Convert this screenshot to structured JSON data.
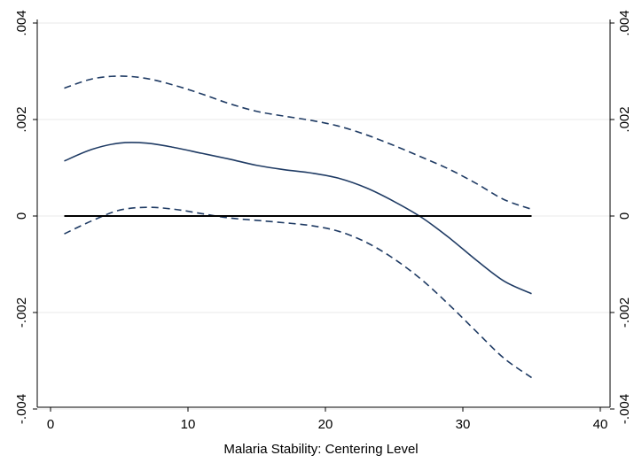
{
  "chart_data": {
    "type": "line",
    "title": "",
    "xlabel": "Malaria Stability: Centering Level",
    "ylabel": "",
    "xlim": [
      0,
      40
    ],
    "ylim": [
      -0.004,
      0.004
    ],
    "x_ticks": [
      0,
      10,
      20,
      30,
      40
    ],
    "x_tick_labels": [
      "0",
      "10",
      "20",
      "30",
      "40"
    ],
    "y_ticks": [
      -0.004,
      -0.002,
      0,
      0.002,
      0.004
    ],
    "y_tick_labels": [
      "-.004",
      "-.002",
      "0",
      ".002",
      ".004"
    ],
    "right_axis_mirror": true,
    "grid": "horizontal",
    "legend": "none",
    "series": [
      {
        "role": "estimate",
        "style": "solid",
        "color": "#1f3b64",
        "x": [
          1,
          3,
          5,
          7,
          9,
          11,
          13,
          15,
          17,
          19,
          21,
          23,
          25,
          27,
          29,
          31,
          33,
          35
        ],
        "y": [
          0.00114,
          0.00138,
          0.00151,
          0.00151,
          0.00142,
          0.0013,
          0.00118,
          0.00105,
          0.00096,
          0.00089,
          0.00078,
          0.00058,
          0.0003,
          -3e-05,
          -0.00045,
          -0.00092,
          -0.00135,
          -0.00161
        ]
      },
      {
        "role": "upper-bound",
        "style": "dashed",
        "color": "#1f3b64",
        "x": [
          1,
          3,
          5,
          7,
          9,
          11,
          13,
          15,
          17,
          19,
          21,
          23,
          25,
          27,
          29,
          31,
          33,
          35
        ],
        "y": [
          0.00265,
          0.00284,
          0.0029,
          0.00285,
          0.00271,
          0.00253,
          0.00233,
          0.00217,
          0.00207,
          0.00198,
          0.00186,
          0.00168,
          0.00146,
          0.00122,
          0.00097,
          0.00067,
          0.00034,
          0.00014
        ]
      },
      {
        "role": "lower-bound",
        "style": "dashed",
        "color": "#1f3b64",
        "x": [
          1,
          3,
          5,
          7,
          9,
          11,
          13,
          15,
          17,
          19,
          21,
          23,
          25,
          27,
          29,
          31,
          33,
          35
        ],
        "y": [
          -0.00037,
          -0.0001,
          0.00012,
          0.00018,
          0.00014,
          5e-05,
          -4e-05,
          -9e-05,
          -0.00014,
          -0.0002,
          -0.00032,
          -0.00055,
          -0.00089,
          -0.00132,
          -0.00184,
          -0.0024,
          -0.00295,
          -0.00335
        ]
      },
      {
        "role": "zero-line",
        "style": "solid",
        "color": "#000000",
        "x": [
          1,
          35
        ],
        "y": [
          0,
          0
        ]
      }
    ]
  }
}
